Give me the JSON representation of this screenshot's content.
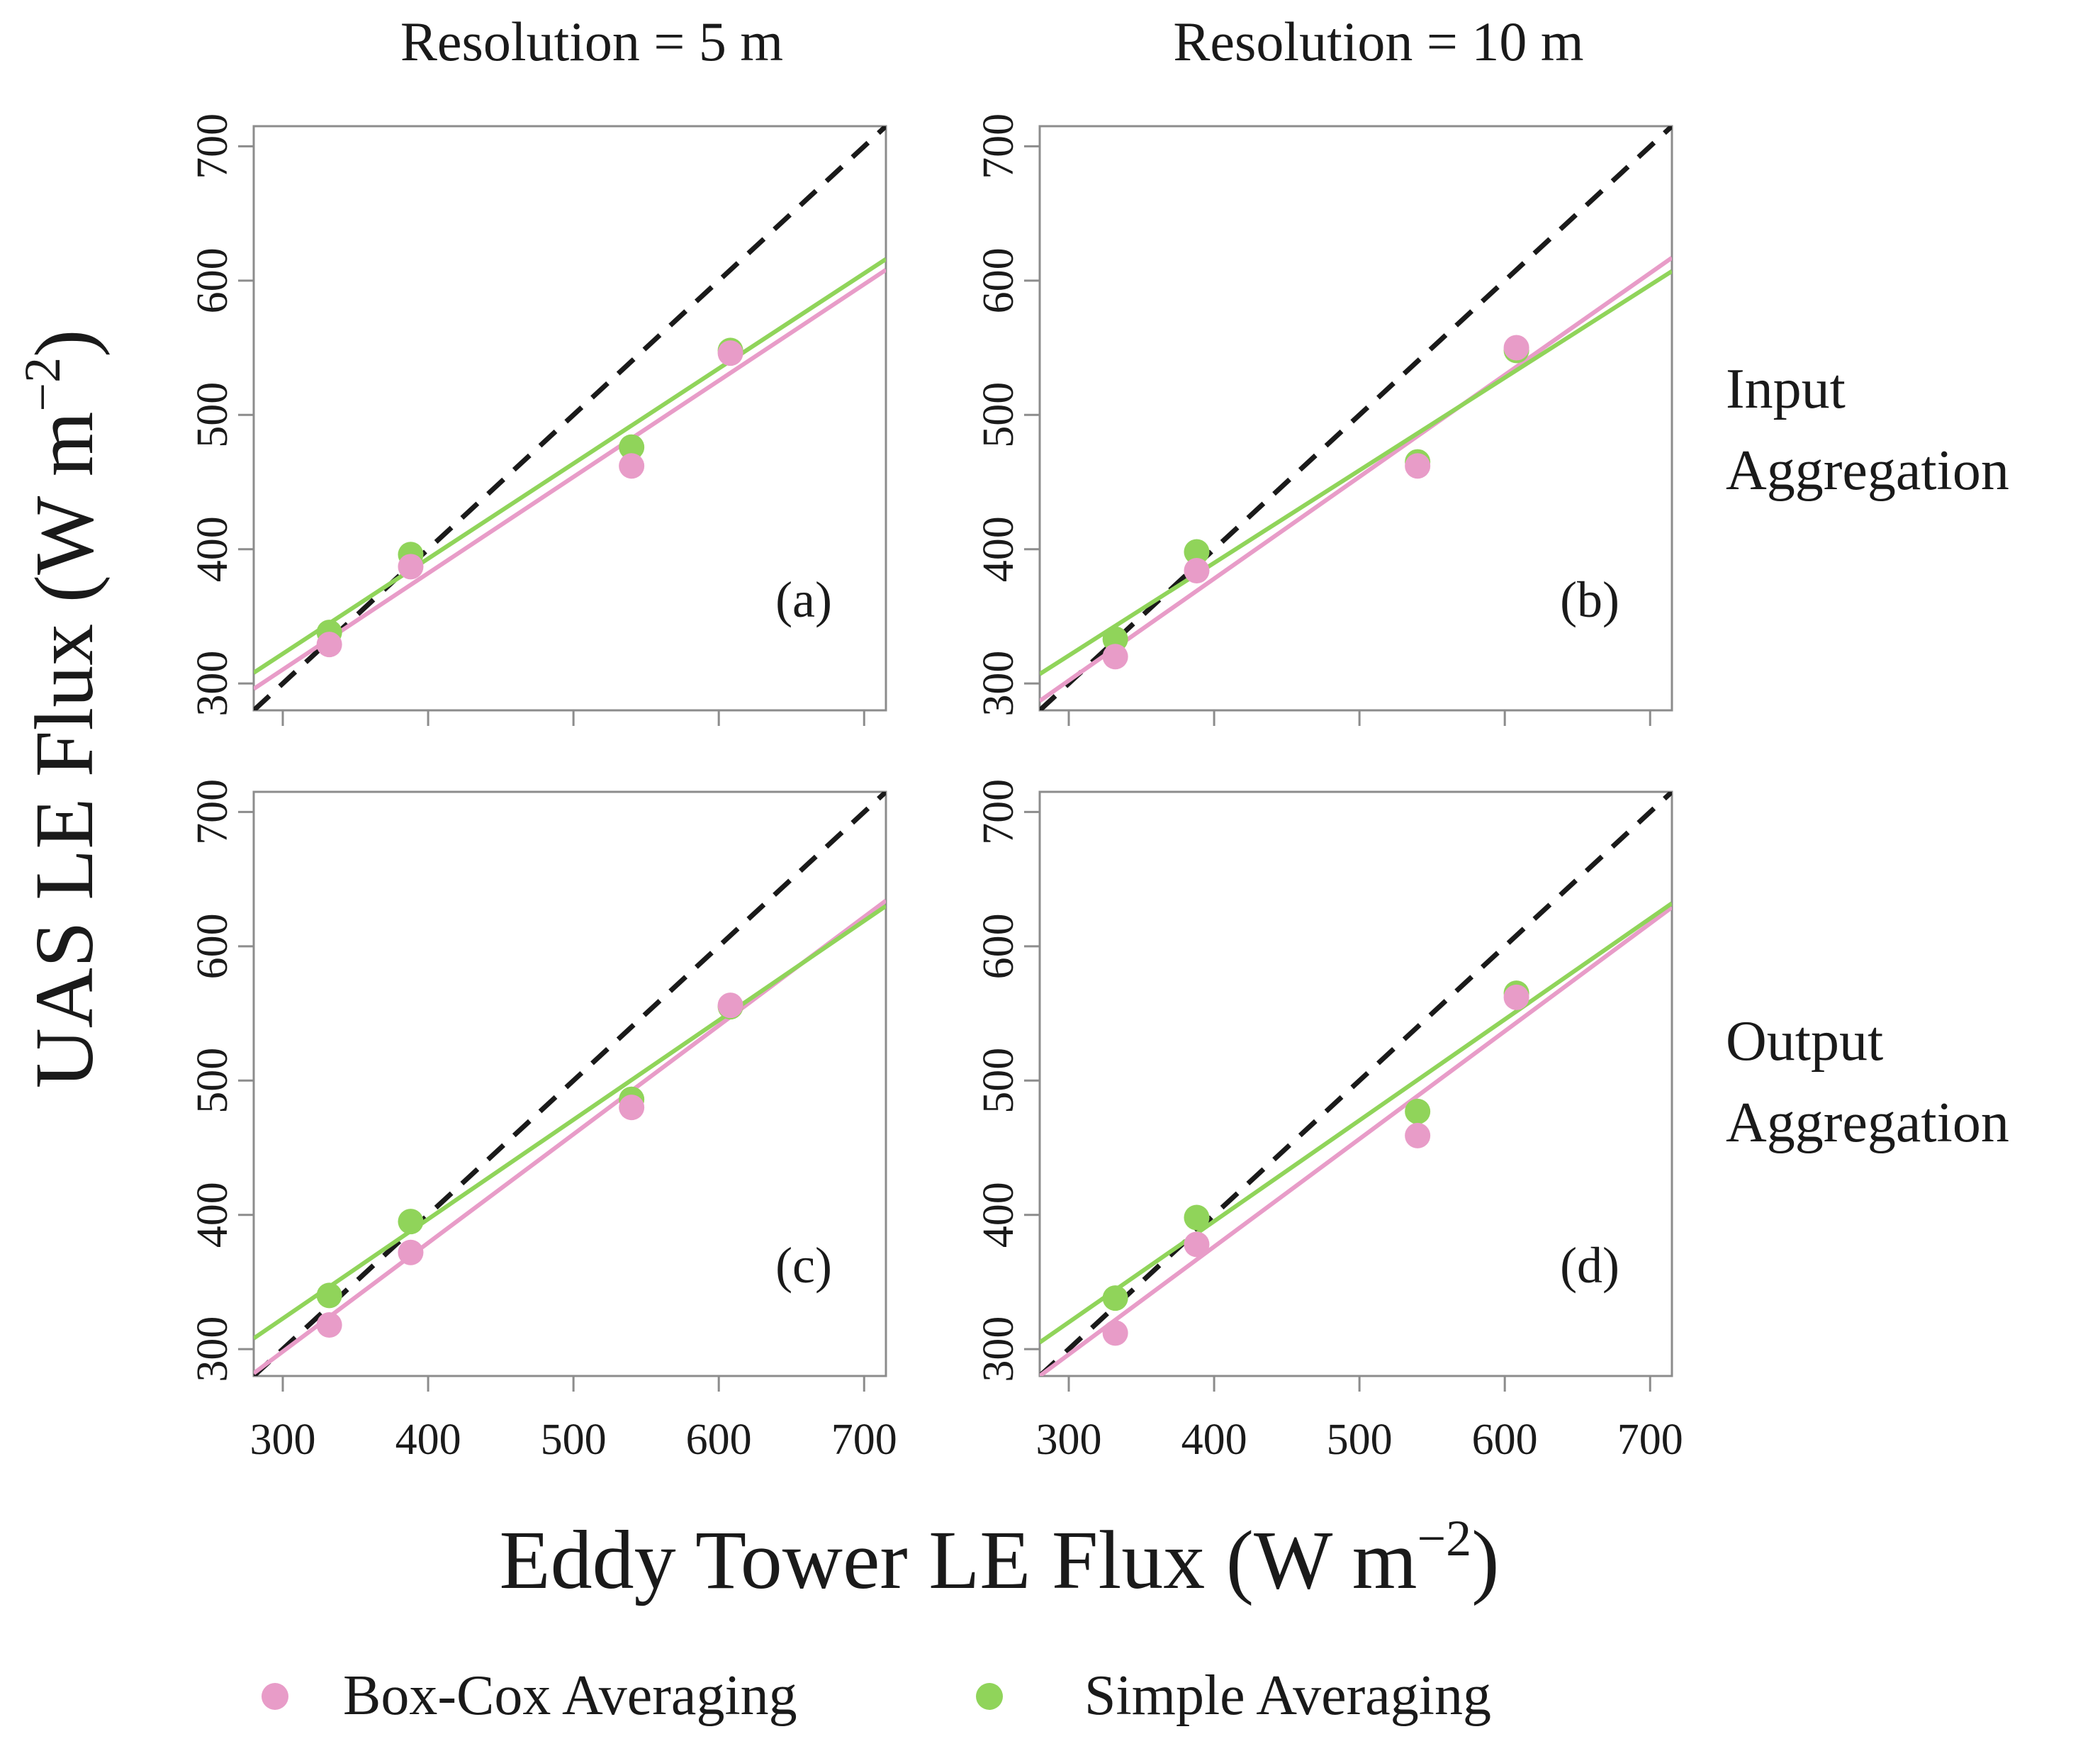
{
  "figure": {
    "col_titles": [
      "Resolution = 5 m",
      "Resolution = 10 m"
    ],
    "row_titles": [
      [
        "Input",
        "Aggregation"
      ],
      [
        "Output",
        "Aggregation"
      ]
    ],
    "ylabel_main": "UAS LE Flux (W m",
    "ylabel_sup": "−2",
    "ylabel_close": ")",
    "xlabel_main": "Eddy Tower LE Flux (W m",
    "xlabel_sup": "−2",
    "xlabel_close": ")"
  },
  "legend": {
    "items": [
      {
        "label": "Box-Cox Averaging",
        "color": "#e89cc8"
      },
      {
        "label": "Simple Averaging",
        "color": "#90d45a"
      }
    ]
  },
  "colors": {
    "boxcox": "#e89cc8",
    "simple": "#90d45a",
    "identity": "#1a1a1a",
    "frame": "#8c8c8c"
  },
  "chart_data": [
    {
      "type": "scatter",
      "panel_label": "(a)",
      "xlim": [
        280,
        715
      ],
      "ylim": [
        280,
        715
      ],
      "xticks": [
        300,
        400,
        500,
        600,
        700
      ],
      "yticks": [
        300,
        400,
        500,
        600,
        700
      ],
      "identity_line": true,
      "series": [
        {
          "name": "Box-Cox Averaging",
          "x": [
            332,
            388,
            540,
            608
          ],
          "y": [
            329,
            387,
            462,
            546
          ],
          "fit": {
            "x0": 280,
            "y0": 296,
            "x1": 715,
            "y1": 608
          }
        },
        {
          "name": "Simple Averaging",
          "x": [
            332,
            388,
            540,
            608
          ],
          "y": [
            338,
            396,
            476,
            548
          ],
          "fit": {
            "x0": 280,
            "y0": 308,
            "x1": 715,
            "y1": 616
          }
        }
      ]
    },
    {
      "type": "scatter",
      "panel_label": "(b)",
      "xlim": [
        280,
        715
      ],
      "ylim": [
        280,
        715
      ],
      "xticks": [
        300,
        400,
        500,
        600,
        700
      ],
      "yticks": [
        300,
        400,
        500,
        600,
        700
      ],
      "identity_line": true,
      "series": [
        {
          "name": "Box-Cox Averaging",
          "x": [
            332,
            388,
            540,
            608
          ],
          "y": [
            320,
            384,
            462,
            550
          ],
          "fit": {
            "x0": 280,
            "y0": 287,
            "x1": 715,
            "y1": 617
          }
        },
        {
          "name": "Simple Averaging",
          "x": [
            332,
            388,
            540,
            608
          ],
          "y": [
            333,
            398,
            465,
            548
          ],
          "fit": {
            "x0": 280,
            "y0": 307,
            "x1": 715,
            "y1": 607
          }
        }
      ]
    },
    {
      "type": "scatter",
      "panel_label": "(c)",
      "xlim": [
        280,
        715
      ],
      "ylim": [
        280,
        715
      ],
      "xticks": [
        300,
        400,
        500,
        600,
        700
      ],
      "yticks": [
        300,
        400,
        500,
        600,
        700
      ],
      "identity_line": true,
      "series": [
        {
          "name": "Box-Cox Averaging",
          "x": [
            332,
            388,
            540,
            608
          ],
          "y": [
            318,
            372,
            480,
            556
          ],
          "fit": {
            "x0": 280,
            "y0": 282,
            "x1": 715,
            "y1": 634
          }
        },
        {
          "name": "Simple Averaging",
          "x": [
            332,
            388,
            540,
            608
          ],
          "y": [
            340,
            395,
            486,
            555
          ],
          "fit": {
            "x0": 280,
            "y0": 308,
            "x1": 715,
            "y1": 630
          }
        }
      ]
    },
    {
      "type": "scatter",
      "panel_label": "(d)",
      "xlim": [
        280,
        715
      ],
      "ylim": [
        280,
        715
      ],
      "xticks": [
        300,
        400,
        500,
        600,
        700
      ],
      "yticks": [
        300,
        400,
        500,
        600,
        700
      ],
      "identity_line": true,
      "series": [
        {
          "name": "Box-Cox Averaging",
          "x": [
            332,
            388,
            540,
            608
          ],
          "y": [
            312,
            378,
            459,
            562
          ],
          "fit": {
            "x0": 280,
            "y0": 280,
            "x1": 715,
            "y1": 629
          }
        },
        {
          "name": "Simple Averaging",
          "x": [
            332,
            388,
            540,
            608
          ],
          "y": [
            338,
            398,
            477,
            565
          ],
          "fit": {
            "x0": 280,
            "y0": 305,
            "x1": 715,
            "y1": 632
          }
        }
      ]
    }
  ]
}
